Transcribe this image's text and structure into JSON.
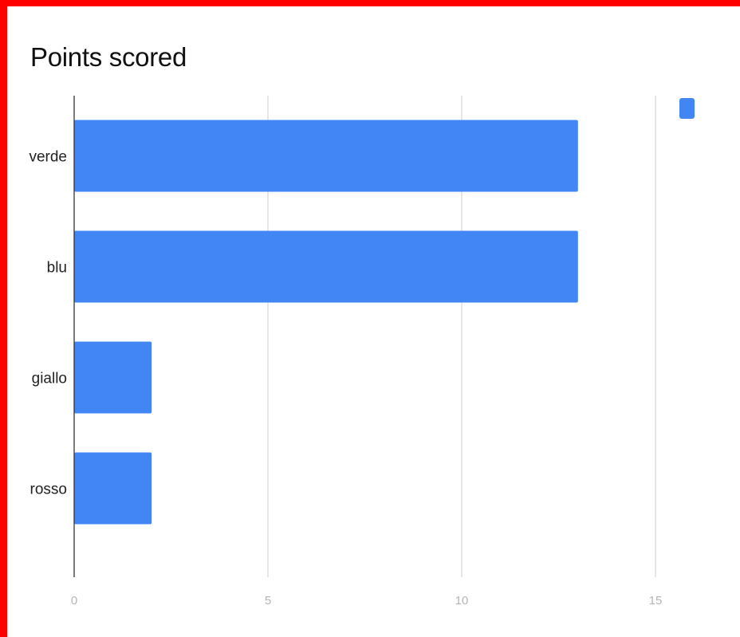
{
  "chart_data": {
    "type": "bar",
    "orientation": "horizontal",
    "title": "Points scored",
    "categories": [
      "verde",
      "blu",
      "giallo",
      "rosso"
    ],
    "series": [
      {
        "values": [
          13,
          13,
          2,
          2
        ]
      }
    ],
    "xlim": [
      0,
      17
    ],
    "xticks": [
      "0",
      "5",
      "10",
      "15"
    ],
    "xlabel": "",
    "ylabel": "",
    "grid": true,
    "legend": "top-right",
    "bar_color": "#4285f4"
  }
}
